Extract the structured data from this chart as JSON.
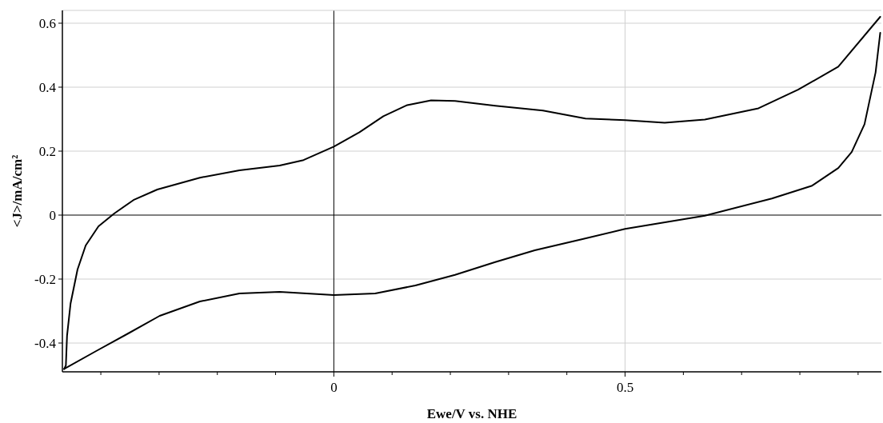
{
  "chart_data": {
    "type": "line",
    "xlabel": "Ewe/V vs. NHE",
    "ylabel": "<J>/mA/cm²",
    "xlim": [
      -0.466,
      0.94
    ],
    "ylim": [
      -0.49,
      0.64
    ],
    "xticks": [
      {
        "value": -0.4,
        "label": null
      },
      {
        "value": -0.3,
        "label": null
      },
      {
        "value": -0.2,
        "label": null
      },
      {
        "value": -0.1,
        "label": null
      },
      0,
      {
        "value": 0.1,
        "label": null
      },
      {
        "value": 0.2,
        "label": null
      },
      {
        "value": 0.3,
        "label": null
      },
      {
        "value": 0.4,
        "label": null
      },
      0.5,
      {
        "value": 0.6,
        "label": null
      },
      {
        "value": 0.7,
        "label": null
      },
      {
        "value": 0.8,
        "label": null
      },
      {
        "value": 0.9,
        "label": null
      }
    ],
    "yticks": [
      -0.4,
      -0.2,
      0,
      0.2,
      0.4,
      0.6
    ],
    "grid": true,
    "line_style": "solid",
    "series": [
      {
        "color": "#000000",
        "x": [
          -0.463,
          -0.408,
          -0.353,
          -0.299,
          -0.23,
          -0.162,
          -0.093,
          0,
          0.071,
          0.14,
          0.208,
          0.277,
          0.345,
          0.427,
          0.5,
          0.637,
          0.752,
          0.821,
          0.866,
          0.889,
          0.911,
          0.93,
          0.938
        ],
        "values": [
          -0.481,
          -0.425,
          -0.37,
          -0.315,
          -0.27,
          -0.245,
          -0.24,
          -0.25,
          -0.245,
          -0.22,
          -0.187,
          -0.147,
          -0.11,
          -0.075,
          -0.043,
          -0.002,
          0.052,
          0.092,
          0.147,
          0.197,
          0.284,
          0.446,
          0.57
        ]
      },
      {
        "color": "#000000",
        "x": [
          -0.463,
          -0.46,
          -0.458,
          -0.452,
          -0.44,
          -0.426,
          -0.404,
          -0.377,
          -0.344,
          -0.303,
          -0.23,
          -0.162,
          -0.093,
          -0.052,
          0,
          0.044,
          0.085,
          0.126,
          0.167,
          0.208,
          0.277,
          0.359,
          0.432,
          0.5,
          0.568,
          0.637,
          0.729,
          0.797,
          0.866,
          0.938
        ],
        "values": [
          -0.481,
          -0.47,
          -0.377,
          -0.277,
          -0.17,
          -0.095,
          -0.035,
          0.005,
          0.047,
          0.08,
          0.117,
          0.14,
          0.155,
          0.172,
          0.214,
          0.259,
          0.309,
          0.344,
          0.359,
          0.357,
          0.342,
          0.327,
          0.302,
          0.297,
          0.289,
          0.299,
          0.334,
          0.392,
          0.464,
          0.62
        ]
      }
    ]
  }
}
